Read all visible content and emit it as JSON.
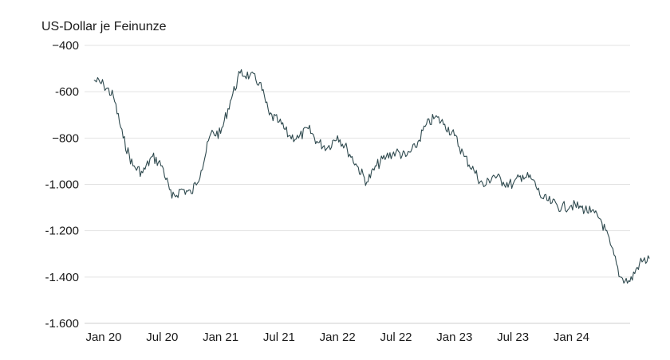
{
  "chart_data": {
    "type": "line",
    "unit_label": "US-Dollar je Feinunze",
    "ylim": [
      -1600,
      -400
    ],
    "y_ticks": [
      -400,
      -600,
      -800,
      -1000,
      -1200,
      -1400,
      -1600
    ],
    "y_tick_labels": [
      "−400",
      "-600",
      "−800",
      "-1.000",
      "-1.200",
      "-1.400",
      "-1.600"
    ],
    "x_tick_labels": [
      "Jan 20",
      "Jul 20",
      "Jan 21",
      "Jul 21",
      "Jan 22",
      "Jul 22",
      "Jan 23",
      "Jul 23",
      "Jan 24"
    ],
    "x_tick_dates": [
      "2020-01",
      "2020-07",
      "2021-01",
      "2021-07",
      "2022-01",
      "2022-07",
      "2023-01",
      "2023-07",
      "2024-01"
    ],
    "x_range": [
      "2019-12",
      "2024-09"
    ],
    "grid": true,
    "line_color": "#2f4a4f",
    "series": [
      {
        "x": [
          "2019-12",
          "2020-01",
          "2020-02",
          "2020-03",
          "2020-04",
          "2020-05",
          "2020-06",
          "2020-07",
          "2020-08",
          "2020-09",
          "2020-10",
          "2020-11",
          "2020-12",
          "2021-01",
          "2021-02",
          "2021-03",
          "2021-04",
          "2021-05",
          "2021-06",
          "2021-07",
          "2021-08",
          "2021-09",
          "2021-10",
          "2021-11",
          "2021-12",
          "2022-01",
          "2022-02",
          "2022-03",
          "2022-04",
          "2022-05",
          "2022-06",
          "2022-07",
          "2022-08",
          "2022-09",
          "2022-10",
          "2022-11",
          "2022-12",
          "2023-01",
          "2023-02",
          "2023-03",
          "2023-04",
          "2023-05",
          "2023-06",
          "2023-07",
          "2023-08",
          "2023-09",
          "2023-10",
          "2023-11",
          "2023-12",
          "2024-01",
          "2024-02",
          "2024-03",
          "2024-04",
          "2024-05",
          "2024-06",
          "2024-07",
          "2024-08",
          "2024-09"
        ],
        "values": [
          -550,
          -570,
          -620,
          -800,
          -920,
          -950,
          -880,
          -920,
          -1060,
          -1020,
          -1040,
          -940,
          -780,
          -780,
          -640,
          -520,
          -530,
          -560,
          -700,
          -730,
          -790,
          -800,
          -760,
          -820,
          -840,
          -790,
          -850,
          -920,
          -990,
          -920,
          -880,
          -860,
          -880,
          -840,
          -750,
          -710,
          -740,
          -790,
          -880,
          -940,
          -1010,
          -960,
          -990,
          -1000,
          -960,
          -980,
          -1060,
          -1080,
          -1100,
          -1090,
          -1100,
          -1120,
          -1150,
          -1260,
          -1400,
          -1420,
          -1340,
          -1320
        ]
      }
    ]
  }
}
